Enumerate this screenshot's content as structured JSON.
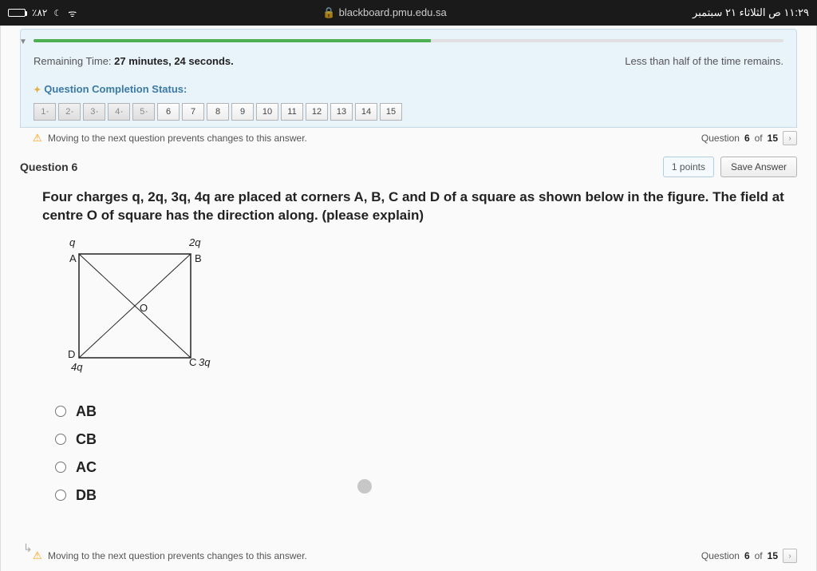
{
  "status": {
    "battery_pct": "٪۸۲",
    "url": "blackboard.pmu.edu.sa",
    "datetime": "١١:٢٩ ص  الثلاثاء ٢١ سبتمبر"
  },
  "timer": {
    "label_prefix": "Remaining Time: ",
    "minutes": "27",
    "minutes_word": " minutes, ",
    "seconds": "24",
    "seconds_word": " seconds.",
    "warning": "Less than half of the time remains."
  },
  "progress_pct": 53,
  "qcs": {
    "title": "Question Completion Status:"
  },
  "qnav": [
    {
      "n": "1",
      "answered": true
    },
    {
      "n": "2",
      "answered": true
    },
    {
      "n": "3",
      "answered": true
    },
    {
      "n": "4",
      "answered": true
    },
    {
      "n": "5",
      "answered": true
    },
    {
      "n": "6",
      "answered": false
    },
    {
      "n": "7",
      "answered": false
    },
    {
      "n": "8",
      "answered": false
    },
    {
      "n": "9",
      "answered": false
    },
    {
      "n": "10",
      "answered": false
    },
    {
      "n": "11",
      "answered": false
    },
    {
      "n": "12",
      "answered": false
    },
    {
      "n": "13",
      "answered": false
    },
    {
      "n": "14",
      "answered": false
    },
    {
      "n": "15",
      "answered": false
    }
  ],
  "navwarn": "Moving to the next question prevents changes to this answer.",
  "position": {
    "word_q": "Question ",
    "current": "6",
    "word_of": " of ",
    "total": "15"
  },
  "question": {
    "heading": "Question 6",
    "points": "1 points",
    "save": "Save Answer",
    "text": "Four charges q, 2q, 3q, 4q are placed at corners A, B, C and D of a square as shown below in the figure. The field at centre O of square has the direction along. (please explain)"
  },
  "figure": {
    "A": "A",
    "B": "B",
    "C": "C",
    "D": "D",
    "O": "O",
    "q": "q",
    "q2": "2q",
    "q3": "3q",
    "q4": "4q"
  },
  "options": [
    "AB",
    "CB",
    "AC",
    "DB"
  ]
}
